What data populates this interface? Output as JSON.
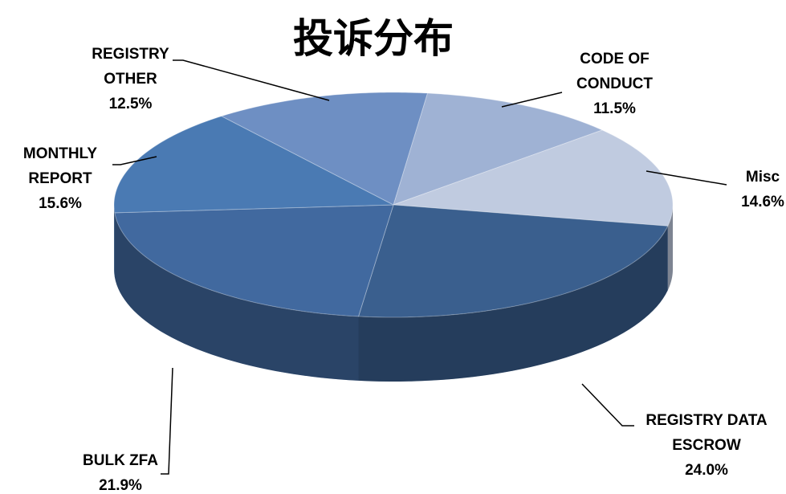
{
  "chart_data": {
    "type": "pie",
    "title": "投诉分布",
    "categories": [
      "CODE OF CONDUCT",
      "Misc",
      "REGISTRY DATA ESCROW",
      "BULK ZFA",
      "MONTHLY REPORT",
      "REGISTRY OTHER"
    ],
    "values": [
      11.5,
      14.6,
      24.0,
      21.9,
      15.6,
      12.5
    ],
    "value_labels": [
      "11.5%",
      "14.6%",
      "24.0%",
      "21.9%",
      "15.6%",
      "12.5%"
    ],
    "colors": [
      "#9fb2d4",
      "#c0cbe0",
      "#3a5f8e",
      "#41699f",
      "#4a7ab3",
      "#6e8fc3"
    ]
  }
}
